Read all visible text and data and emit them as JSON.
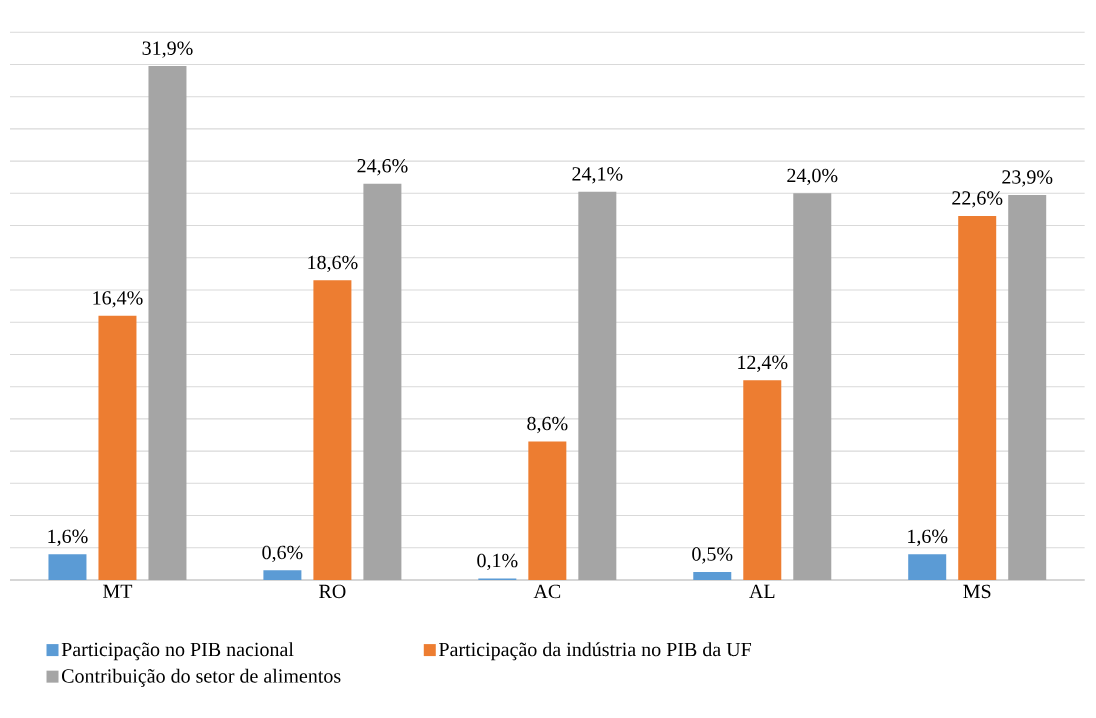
{
  "chart_data": {
    "type": "bar",
    "categories": [
      "MT",
      "RO",
      "AC",
      "AL",
      "MS"
    ],
    "series": [
      {
        "name": "Participação no PIB nacional",
        "color": "#5b9bd5",
        "values": [
          1.6,
          0.6,
          0.1,
          0.5,
          1.6
        ],
        "value_labels": [
          "1,6%",
          "0,6%",
          "0,1%",
          "0,5%",
          "1,6%"
        ]
      },
      {
        "name": "Participação da indústria no PIB da UF",
        "color": "#ed7d31",
        "values": [
          16.4,
          18.6,
          8.6,
          12.4,
          22.6
        ],
        "value_labels": [
          "16,4%",
          "18,6%",
          "8,6%",
          "12,4%",
          "22,6%"
        ]
      },
      {
        "name": "Contribuição do setor de alimentos",
        "color": "#a5a5a5",
        "values": [
          31.9,
          24.6,
          24.1,
          24.0,
          23.9
        ],
        "value_labels": [
          "31,9%",
          "24,6%",
          "24,1%",
          "24,0%",
          "23,9%"
        ]
      }
    ],
    "tick_labels": "x",
    "grid": "y",
    "legend": "bottom"
  }
}
